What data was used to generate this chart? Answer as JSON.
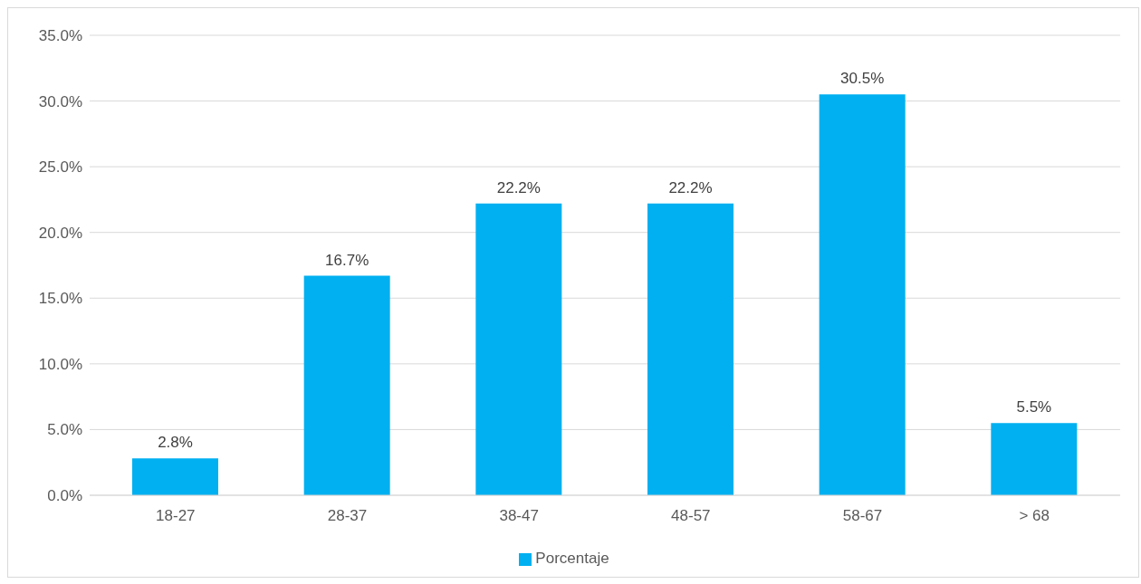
{
  "chart_data": {
    "type": "bar",
    "categories": [
      "18-27",
      "28-37",
      "38-47",
      "48-57",
      "58-67",
      "> 68"
    ],
    "series": [
      {
        "name": "Porcentaje",
        "color": "#00b0f0",
        "values": [
          2.8,
          16.7,
          22.2,
          22.2,
          30.5,
          5.5
        ],
        "value_labels": [
          "2.8%",
          "16.7%",
          "22.2%",
          "22.2%",
          "30.5%",
          "5.5%"
        ]
      }
    ],
    "ylim": [
      0,
      35
    ],
    "yticks": [
      {
        "value": 0,
        "label": "0.0%"
      },
      {
        "value": 5,
        "label": "5.0%"
      },
      {
        "value": 10,
        "label": "10.0%"
      },
      {
        "value": 15,
        "label": "15.0%"
      },
      {
        "value": 20,
        "label": "20.0%"
      },
      {
        "value": 25,
        "label": "25.0%"
      },
      {
        "value": 30,
        "label": "30.0%"
      },
      {
        "value": 35,
        "label": "35.0%"
      }
    ],
    "grid": "y",
    "legend": "bottom"
  }
}
